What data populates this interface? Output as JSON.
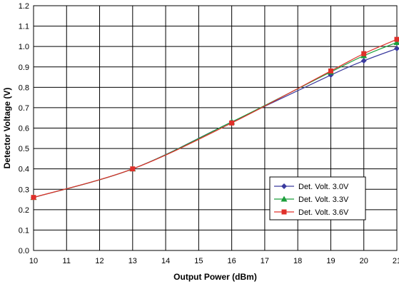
{
  "chart_data": {
    "type": "line",
    "title": "",
    "xlabel": "Output Power (dBm)",
    "ylabel": "Detector Voltage (V)",
    "xlim": [
      10,
      21
    ],
    "ylim": [
      0.0,
      1.2
    ],
    "x_ticks": [
      "10",
      "11",
      "12",
      "13",
      "14",
      "15",
      "16",
      "17",
      "18",
      "19",
      "20",
      "21"
    ],
    "y_ticks": [
      "0.0",
      "0.1",
      "0.2",
      "0.3",
      "0.4",
      "0.5",
      "0.6",
      "0.7",
      "0.8",
      "0.9",
      "1.0",
      "1.1",
      "1.2"
    ],
    "grid": true,
    "legend_position": "bottom-right",
    "series": [
      {
        "name": "Det. Volt. 3.0V",
        "color": "#3a3a9e",
        "marker": "diamond",
        "x": [
          10,
          13,
          16,
          19,
          20,
          21
        ],
        "y": [
          0.26,
          0.4,
          0.63,
          0.86,
          0.93,
          0.99
        ]
      },
      {
        "name": "Det. Volt. 3.3V",
        "color": "#1a9e3a",
        "marker": "triangle",
        "x": [
          10,
          13,
          16,
          19,
          20,
          21
        ],
        "y": [
          0.26,
          0.4,
          0.63,
          0.875,
          0.955,
          1.02
        ]
      },
      {
        "name": "Det. Volt. 3.6V",
        "color": "#e0302a",
        "marker": "square",
        "x": [
          10,
          13,
          16,
          19,
          20,
          21
        ],
        "y": [
          0.26,
          0.4,
          0.625,
          0.88,
          0.965,
          1.035
        ]
      }
    ]
  }
}
